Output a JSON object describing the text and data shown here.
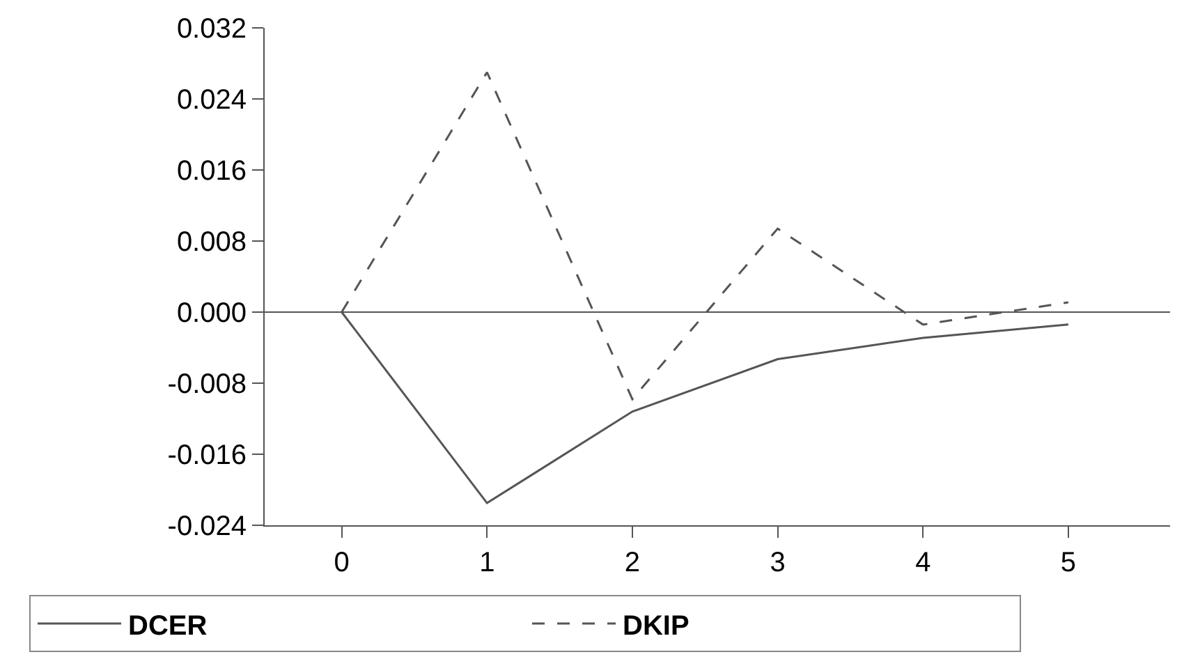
{
  "chart_data": {
    "type": "line",
    "x": [
      0,
      1,
      2,
      3,
      4,
      5
    ],
    "series": [
      {
        "name": "DCER",
        "color": "#555555",
        "line_style": "solid",
        "values": [
          0,
          -0.0215,
          -0.0112,
          -0.0053,
          -0.0029,
          -0.0014
        ]
      },
      {
        "name": "DKIP",
        "color": "#555555",
        "line_style": "dashed",
        "values": [
          0,
          0.027,
          -0.0098,
          0.0094,
          -0.0014,
          0.0011
        ]
      }
    ],
    "xlim": [
      -0.53,
      5.7
    ],
    "xticks": [
      0,
      1,
      2,
      3,
      4,
      5
    ],
    "ylim": [
      -0.024,
      0.032
    ],
    "yticks": [
      {
        "value": 0.032,
        "label": "0.032"
      },
      {
        "value": 0.024,
        "label": "0.024"
      },
      {
        "value": 0.016,
        "label": "0.016"
      },
      {
        "value": 0.008,
        "label": "0.008"
      },
      {
        "value": 0,
        "label": "0.000"
      },
      {
        "value": -0.008,
        "label": "-0.008"
      },
      {
        "value": -0.016,
        "label": "-0.016"
      },
      {
        "value": -0.024,
        "label": "-0.024"
      }
    ],
    "ref_lines": [
      {
        "axis": "y",
        "value": 0,
        "color": "#555555"
      }
    ],
    "legend": "bottom",
    "marker": "none"
  }
}
